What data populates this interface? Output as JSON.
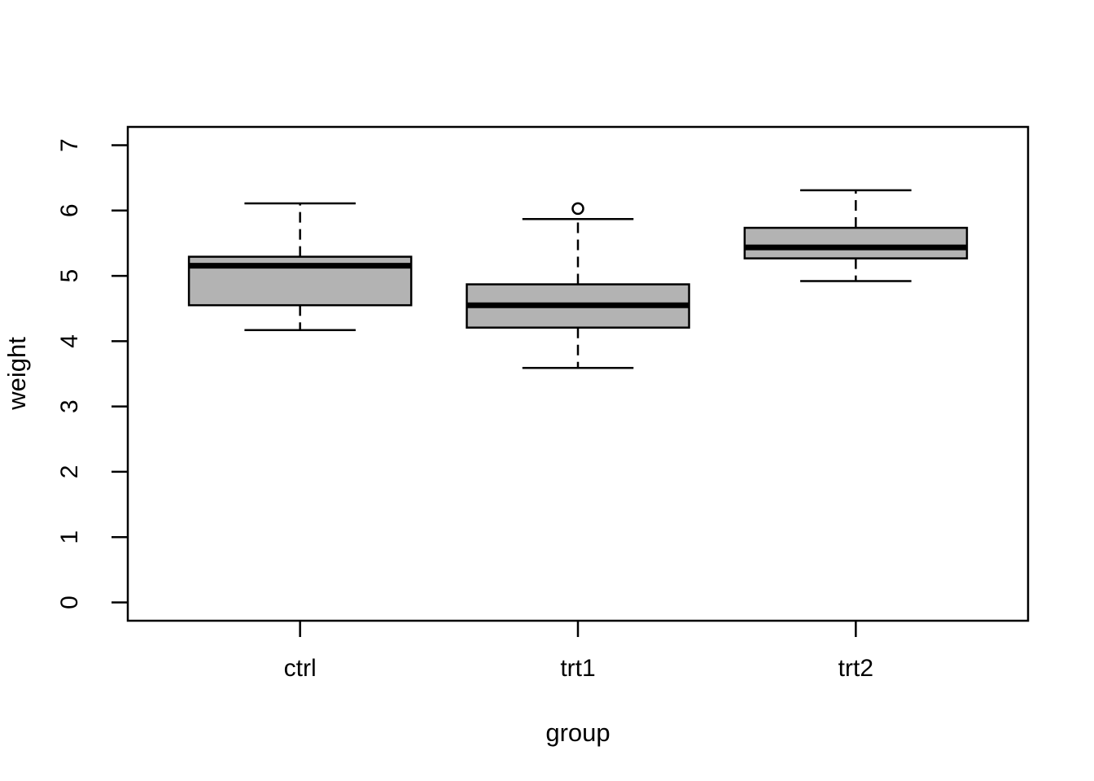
{
  "figure": {
    "background": "#ffffff"
  },
  "chart_data": {
    "type": "boxplot",
    "xlabel": "group",
    "ylabel": "weight",
    "categories": [
      "ctrl",
      "trt1",
      "trt2"
    ],
    "y_ticks": [
      0,
      1,
      2,
      3,
      4,
      5,
      6,
      7
    ],
    "ylim": [
      0,
      7
    ],
    "xlim": [
      0.5,
      3.5
    ],
    "grid": false,
    "legend": "none",
    "box_fill": "#b3b3b3",
    "stroke_color": "#000000",
    "median_color": "#000000",
    "outlier_marker": "open-circle",
    "series": [
      {
        "name": "ctrl",
        "whisker_low": 4.17,
        "q1": 4.55,
        "median": 5.155,
        "q3": 5.2925,
        "whisker_high": 6.11,
        "outliers": []
      },
      {
        "name": "trt1",
        "whisker_low": 3.59,
        "q1": 4.2075,
        "median": 4.55,
        "q3": 4.87,
        "whisker_high": 5.87,
        "outliers": [
          6.03
        ]
      },
      {
        "name": "trt2",
        "whisker_low": 4.92,
        "q1": 5.2675,
        "median": 5.435,
        "q3": 5.735,
        "whisker_high": 6.31,
        "outliers": []
      }
    ]
  }
}
